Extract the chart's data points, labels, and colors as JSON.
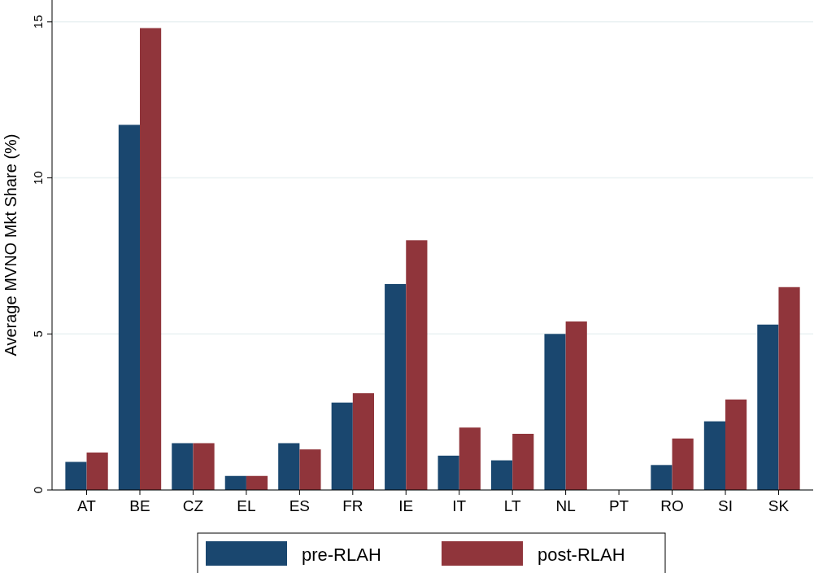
{
  "chart_data": {
    "type": "bar",
    "ylabel": "Average MVNO Mkt Share (%)",
    "categories": [
      "AT",
      "BE",
      "CZ",
      "EL",
      "ES",
      "FR",
      "IE",
      "IT",
      "LT",
      "NL",
      "PT",
      "RO",
      "SI",
      "SK"
    ],
    "series": [
      {
        "name": "pre-RLAH",
        "color": "#1a476f",
        "values": [
          0.9,
          11.7,
          1.5,
          0.45,
          1.5,
          2.8,
          6.6,
          1.1,
          0.95,
          5.0,
          null,
          0.8,
          2.2,
          5.3
        ]
      },
      {
        "name": "post-RLAH",
        "color": "#90353b",
        "values": [
          1.2,
          14.8,
          1.5,
          0.45,
          1.3,
          3.1,
          8.0,
          2.0,
          1.8,
          5.4,
          null,
          1.65,
          2.9,
          6.5
        ]
      }
    ],
    "ylim": [
      0,
      15.7
    ],
    "yticks": [
      0,
      5,
      10,
      15
    ],
    "grid": "y",
    "legend": "bottom"
  }
}
